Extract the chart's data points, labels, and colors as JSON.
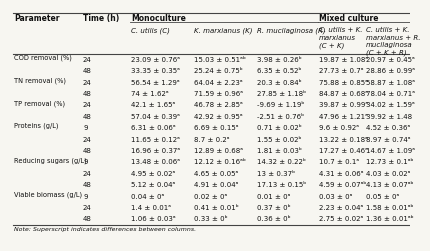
{
  "note": "Note: Superscript indicates differences between columns.",
  "rows": [
    [
      "COD removal (%)",
      "24",
      "23.09 ± 0.76ᵃ",
      "15.03 ± 0.51ᵃᵇ",
      "3.98 ± 0.26ᵇ",
      "19.87 ± 1.08ᵃ",
      "20.97 ± 0.45ᵃ"
    ],
    [
      "",
      "48",
      "33.35 ± 0.35ᵃ",
      "25.24 ± 0.75ᵇ",
      "6.35 ± 0.52ᵇ",
      "27.73 ± 0.7ᵃ",
      "28.86 ± 0.99ᵃ"
    ],
    [
      "TN removal (%)",
      "24",
      "56.54 ± 1.29ᵃ",
      "64.04 ± 2.23ᵃ",
      "20.3 ± 0.84ᵇ",
      "75.88 ± 0.85ᵃ",
      "58.87 ± 1.08ᵃ"
    ],
    [
      "",
      "48",
      "74 ± 1.62ᵃ",
      "71.59 ± 0.96ᵃ",
      "27.85 ± 1.18ᵇ",
      "84.87 ± 0.68ᵃ",
      "78.04 ± 0.71ᵃ"
    ],
    [
      "TP removal (%)",
      "24",
      "42.1 ± 1.65ᵃ",
      "46.78 ± 2.85ᵃ",
      "-9.69 ± 1.19ᵇ",
      "39.87 ± 0.99ᵃ",
      "34.02 ± 1.59ᵃ"
    ],
    [
      "",
      "48",
      "57.04 ± 0.39ᵃ",
      "42.92 ± 0.95ᵃ",
      "-2.51 ± 0.76ᵇ",
      "47.96 ± 1.21ᵃ",
      "39.92 ± 1.48"
    ],
    [
      "Proteins (g/L)",
      "9",
      "6.31 ± 0.06ᵃ",
      "6.69 ± 0.15ᵃ",
      "0.71 ± 0.02ᵇ",
      "9.6 ± 0.92ᵃ",
      "4.52 ± 0.36ᵃ"
    ],
    [
      "",
      "24",
      "11.65 ± 0.12ᵃ",
      "8.7 ± 0.2ᵃ",
      "1.55 ± 0.02ᵇ",
      "13.22 ± 0.18ᵃ",
      "8.97 ± 0.74ᵃ"
    ],
    [
      "",
      "48",
      "16.96 ± 0.37ᵃ",
      "12.89 ± 0.68ᵃ",
      "1.81 ± 0.03ᵇ",
      "17.27 ± 0.46ᵃ",
      "14.67 ± 1.09ᵃ"
    ],
    [
      "Reducing sugars (g/L)",
      "9",
      "13.48 ± 0.06ᵃ",
      "12.12 ± 0.16ᵃᵇ",
      "14.32 ± 0.22ᵇ",
      "10.7 ± 0.1ᵃ",
      "12.73 ± 0.1ᵃᵇ"
    ],
    [
      "",
      "24",
      "4.95 ± 0.02ᵃ",
      "4.65 ± 0.05ᵃ",
      "13 ± 0.37ᵇ",
      "4.31 ± 0.06ᵃ",
      "4.03 ± 0.02ᵃ"
    ],
    [
      "",
      "48",
      "5.12 ± 0.04ᵃ",
      "4.91 ± 0.04ᵃ",
      "17.13 ± 0.15ᵇ",
      "4.59 ± 0.07ᵃᵇ",
      "4.13 ± 0.07ᵃᵇ"
    ],
    [
      "Viable biomass (g/L)",
      "9",
      "0.04 ± 0ᵃ",
      "0.02 ± 0ᵃ",
      "0.01 ± 0ᵃ",
      "0.03 ± 0ᵃ",
      "0.05 ± 0ᵃ"
    ],
    [
      "",
      "24",
      "1.4 ± 0.01ᵃ",
      "0.41 ± 0.01ᵇ",
      "0.37 ± 0ᵇ",
      "2.23 ± 0.04ᵃ",
      "1.58 ± 0.01ᵃᵇ"
    ],
    [
      "",
      "48",
      "1.06 ± 0.03ᵃ",
      "0.33 ± 0ᵇ",
      "0.36 ± 0ᵇ",
      "2.75 ± 0.02ᵃ",
      "1.36 ± 0.01ᵃᵇ"
    ]
  ],
  "col_headers": [
    "C. utilis (C)",
    "K. marxianus (K)",
    "R. mucilaginosa (R)",
    "C. utilis + K.\nmarxianus\n(C + K)",
    "C. utilis + K.\nmarxianus + R.\nmucilaginosa\n(C + K + R)"
  ],
  "bg_color": "#f7f6f1",
  "line_color": "#444444",
  "text_color": "#111111",
  "font_size": 5.0,
  "header_font_size": 5.5
}
